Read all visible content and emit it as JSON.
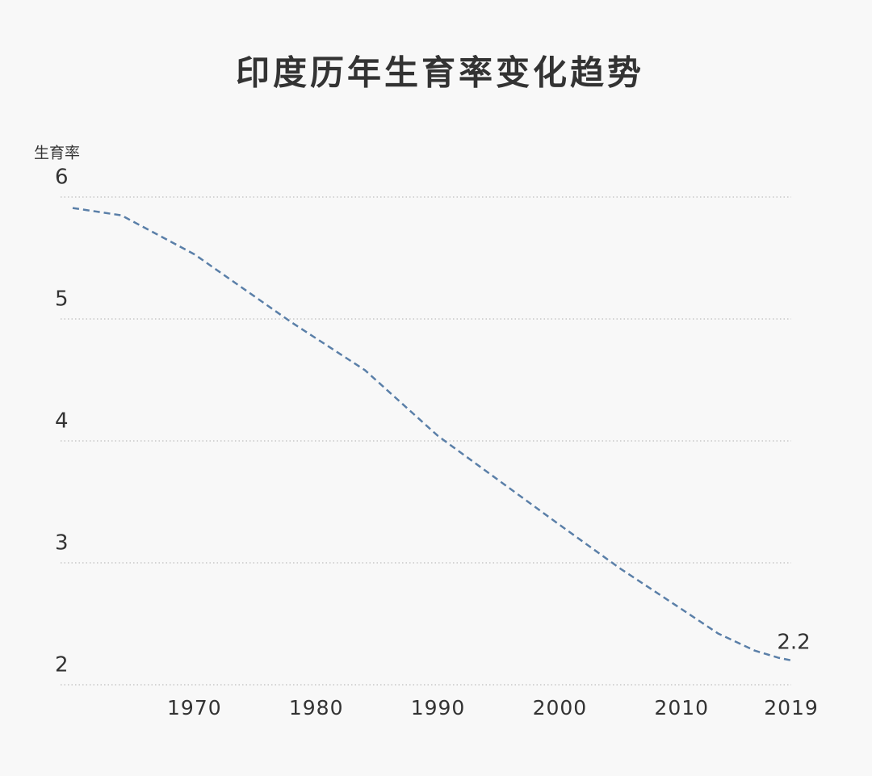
{
  "chart_data": {
    "type": "line",
    "title": "印度历年生育率变化趋势",
    "y_label": "生育率",
    "x": [
      1960,
      1964,
      1970,
      1978,
      1984,
      1990,
      2000,
      2005,
      2010,
      2013,
      2016,
      2018,
      2019
    ],
    "series": [
      {
        "name": "印度",
        "color": "#5a7fa8",
        "values": [
          5.91,
          5.85,
          5.53,
          4.97,
          4.58,
          4.04,
          3.31,
          2.95,
          2.62,
          2.42,
          2.28,
          2.22,
          2.2
        ]
      }
    ],
    "xlim": [
      1960,
      2019
    ],
    "xticks": [
      1970,
      1980,
      1990,
      2000,
      2010,
      2019
    ],
    "ylim": [
      2,
      6
    ],
    "yticks": [
      2,
      3,
      4,
      5,
      6
    ],
    "grid": true,
    "line_style": "dashed"
  }
}
